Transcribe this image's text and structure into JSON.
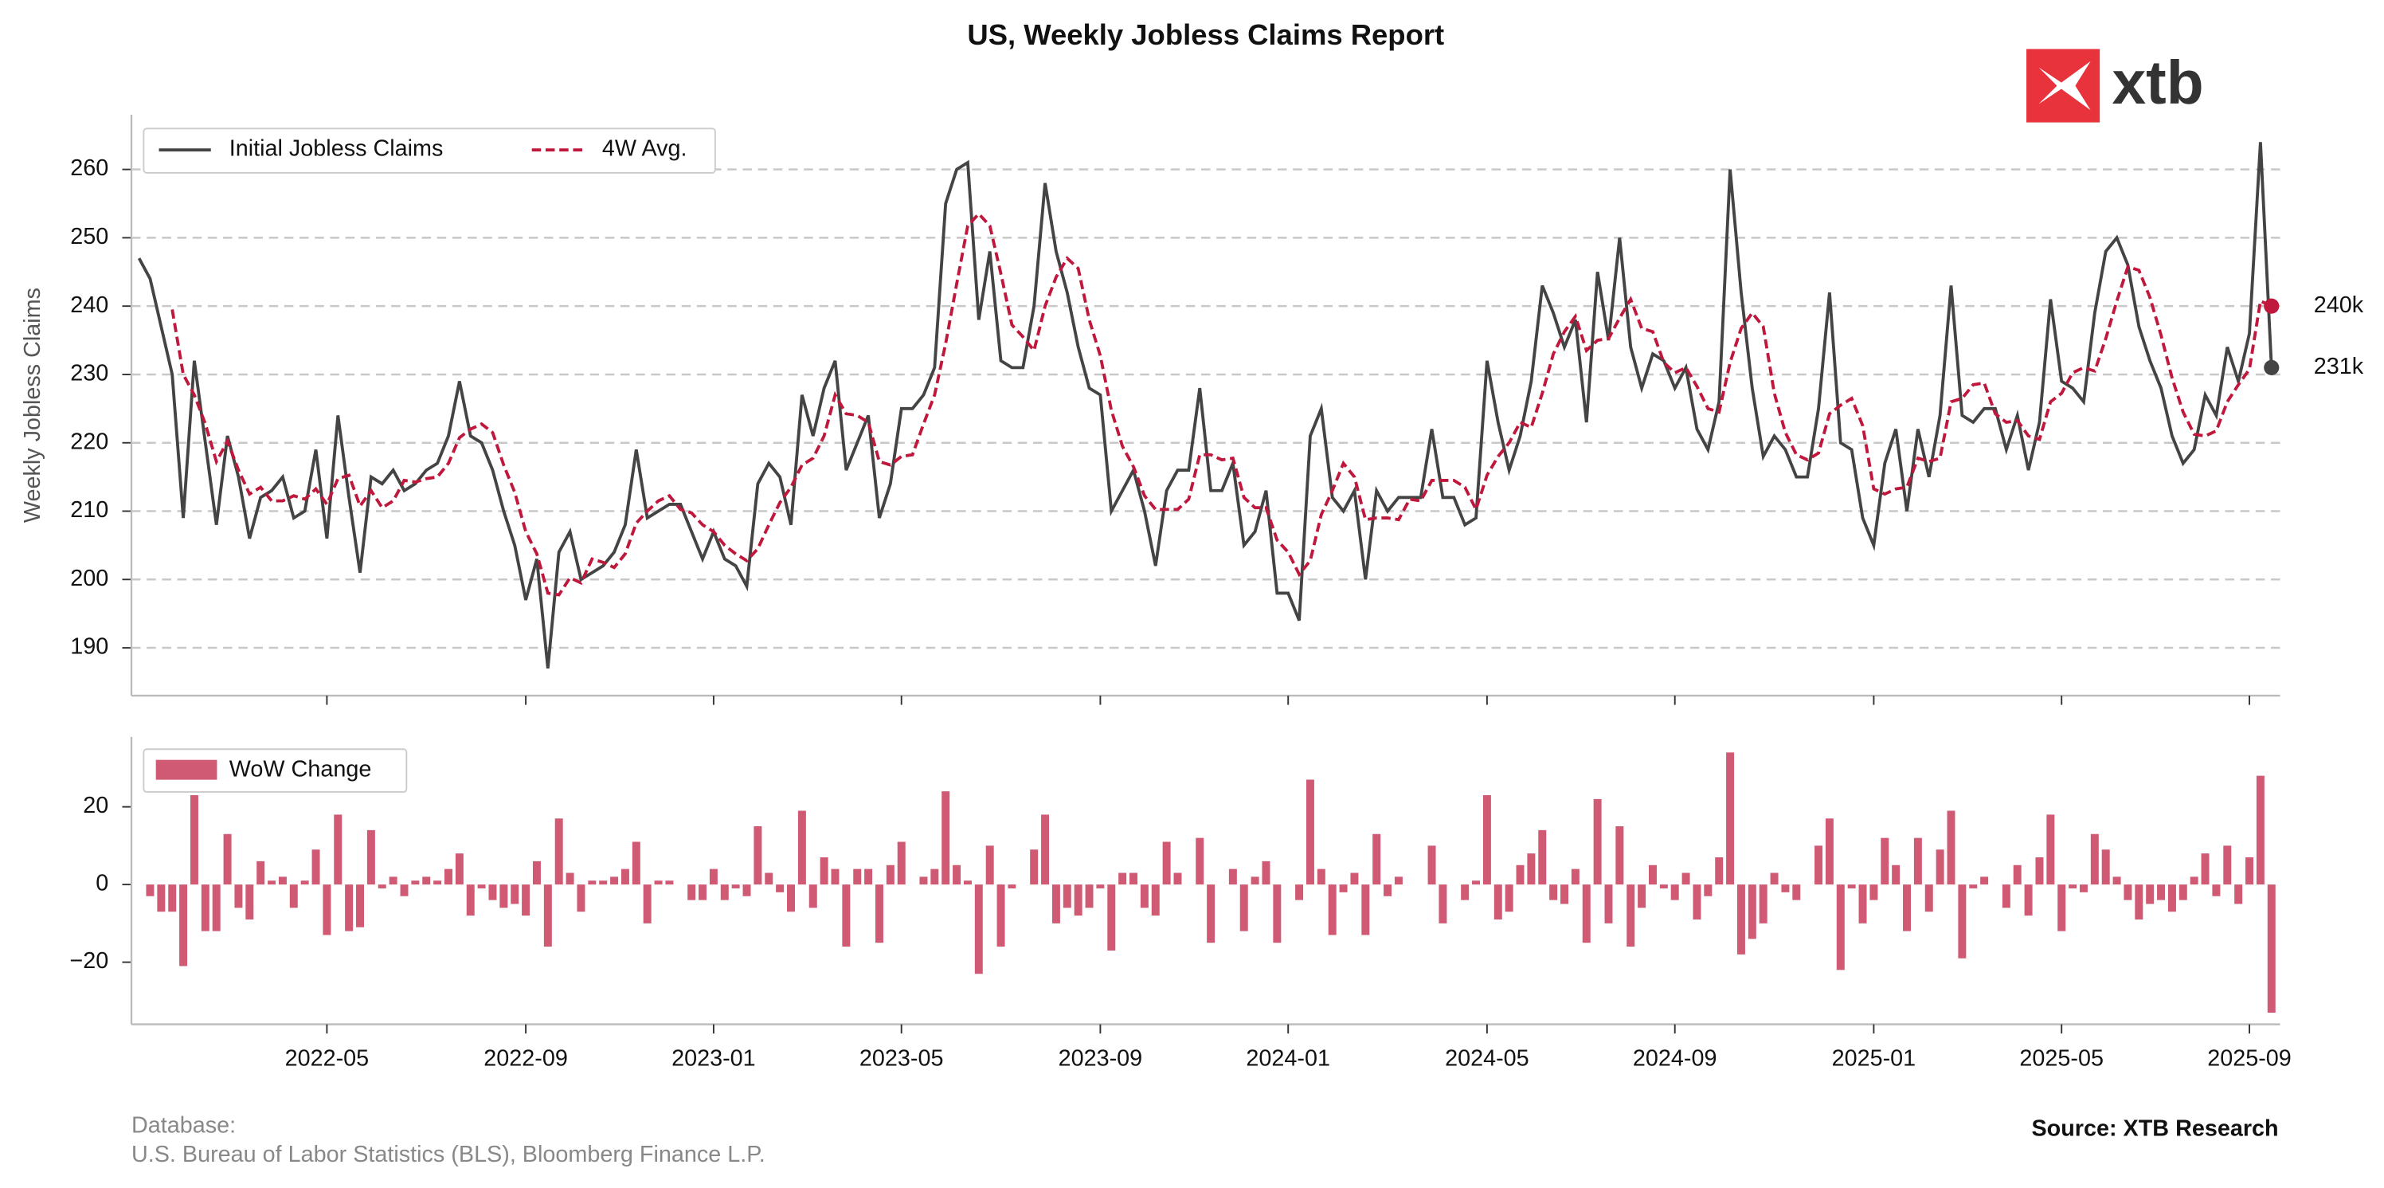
{
  "chart_data": [
    {
      "type": "line",
      "title": "US, Weekly Jobless Claims Report",
      "y_label": "Weekly Jobless Claims",
      "ylim": [
        183,
        268
      ],
      "yticks": [
        190,
        200,
        210,
        220,
        230,
        240,
        250,
        260
      ],
      "grid": true,
      "legend": "upper left",
      "series": [
        {
          "name": "Initial Jobless Claims",
          "color": "#444444",
          "dashed": false,
          "last_label": "231k",
          "values": [
            247,
            244,
            237,
            230,
            209,
            232,
            220,
            208,
            221,
            215,
            206,
            212,
            213,
            215,
            209,
            210,
            219,
            206,
            224,
            212,
            201,
            215,
            214,
            216,
            213,
            214,
            216,
            217,
            221,
            229,
            221,
            220,
            216,
            210,
            205,
            197,
            203,
            187,
            204,
            207,
            200,
            201,
            202,
            204,
            208,
            219,
            209,
            210,
            211,
            211,
            207,
            203,
            207,
            203,
            202,
            199,
            214,
            217,
            215,
            208,
            227,
            221,
            228,
            232,
            216,
            220,
            224,
            209,
            214,
            225,
            225,
            227,
            231,
            255,
            260,
            261,
            238,
            248,
            232,
            231,
            231,
            240,
            258,
            248,
            242,
            234,
            228,
            227,
            210,
            213,
            216,
            210,
            202,
            213,
            216,
            216,
            228,
            213,
            213,
            217,
            205,
            207,
            213,
            198,
            198,
            194,
            221,
            225,
            212,
            210,
            213,
            200,
            213,
            210,
            212,
            212,
            212,
            222,
            212,
            212,
            208,
            209,
            232,
            223,
            216,
            221,
            229,
            243,
            239,
            234,
            238,
            223,
            245,
            235,
            250,
            234,
            228,
            233,
            232,
            228,
            231,
            222,
            219,
            226,
            260,
            242,
            228,
            218,
            221,
            219,
            215,
            215,
            225,
            242,
            220,
            219,
            209,
            205,
            217,
            222,
            210,
            222,
            215,
            224,
            243,
            224,
            223,
            225,
            225,
            219,
            224,
            216,
            223,
            241,
            229,
            228,
            226,
            239,
            248,
            250,
            246,
            237,
            232,
            228,
            221,
            217,
            219,
            227,
            224,
            234,
            229,
            236,
            264,
            231
          ]
        },
        {
          "name": "4W Avg.",
          "color": "#c0183c",
          "dashed": true,
          "last_label": "240k",
          "values": [
            null,
            null,
            null,
            239.5,
            230,
            227,
            222.75,
            217.25,
            220.25,
            216,
            212.5,
            213.5,
            211.5,
            211.5,
            212.25,
            211.75,
            213.25,
            211,
            214.75,
            215.25,
            210.75,
            213,
            210.5,
            211.5,
            214.5,
            214.25,
            214.75,
            215,
            217,
            220.75,
            222,
            222.75,
            221.5,
            216.75,
            212.75,
            207,
            203.75,
            198,
            197.75,
            200.25,
            199.5,
            203,
            202.5,
            201.75,
            203.75,
            208.25,
            210,
            211.5,
            212.25,
            210.25,
            209.75,
            208,
            207,
            205,
            203.75,
            202.75,
            204.5,
            208,
            211.25,
            213.5,
            216.75,
            217.75,
            221,
            227,
            224.25,
            224,
            223,
            217.25,
            216.75,
            218,
            218.25,
            222.75,
            227,
            234.5,
            243.25,
            251.75,
            253.5,
            251.75,
            244.75,
            237.25,
            235.5,
            233.5,
            240,
            244.25,
            247,
            245.5,
            238,
            232.75,
            224.75,
            219.5,
            216.5,
            212.25,
            210.25,
            210.25,
            210.25,
            211.75,
            218.25,
            218.25,
            217.5,
            217.75,
            212,
            210.5,
            210.5,
            205.75,
            204,
            200.75,
            202.75,
            209.5,
            213,
            217,
            215,
            208.75,
            209,
            209,
            208.75,
            211.75,
            211.5,
            214.5,
            214.5,
            214.5,
            213.5,
            210.25,
            215.25,
            218,
            220,
            223,
            222.25,
            227.25,
            233,
            236.25,
            238.5,
            233.5,
            235,
            235.25,
            238.25,
            241,
            236.75,
            236.25,
            231.75,
            230.25,
            231,
            228.25,
            225,
            224.5,
            231.75,
            236.75,
            239,
            237,
            227.25,
            221.5,
            218.25,
            217.5,
            218.5,
            224.25,
            225.5,
            226.5,
            222.5,
            213.25,
            212.5,
            213.25,
            213.5,
            217.75,
            217.25,
            217.75,
            226,
            226.5,
            228.5,
            228.75,
            224.25,
            223,
            223.25,
            221,
            220.5,
            226,
            227.25,
            230.25,
            231,
            230.5,
            235.25,
            240.75,
            245.75,
            245.25,
            241.25,
            235.75,
            229.5,
            224.5,
            221.25,
            221,
            221.75,
            226,
            228.5,
            230.75,
            240.75,
            240
          ]
        }
      ]
    },
    {
      "type": "bar",
      "ylim": [
        -36,
        38
      ],
      "yticks": [
        {
          "value": -20,
          "label": "−20"
        },
        0,
        20
      ],
      "grid": false,
      "legend": "upper left",
      "categories": [
        null,
        null,
        null,
        null,
        null,
        null,
        null,
        null,
        null,
        null,
        null,
        null,
        null,
        null,
        null,
        null,
        null,
        "2022-05",
        null,
        null,
        null,
        null,
        null,
        null,
        null,
        null,
        null,
        null,
        null,
        null,
        null,
        null,
        null,
        null,
        null,
        "2022-09",
        null,
        null,
        null,
        null,
        null,
        null,
        null,
        null,
        null,
        null,
        null,
        null,
        null,
        null,
        null,
        null,
        "2023-01",
        null,
        null,
        null,
        null,
        null,
        null,
        null,
        null,
        null,
        null,
        null,
        null,
        null,
        null,
        null,
        null,
        "2023-05",
        null,
        null,
        null,
        null,
        null,
        null,
        null,
        null,
        null,
        null,
        null,
        null,
        null,
        null,
        null,
        null,
        null,
        "2023-09",
        null,
        null,
        null,
        null,
        null,
        null,
        null,
        null,
        null,
        null,
        null,
        null,
        null,
        null,
        null,
        null,
        "2024-01",
        null,
        null,
        null,
        null,
        null,
        null,
        null,
        null,
        null,
        null,
        null,
        null,
        null,
        null,
        null,
        null,
        null,
        "2024-05",
        null,
        null,
        null,
        null,
        null,
        null,
        null,
        null,
        null,
        null,
        null,
        null,
        null,
        null,
        null,
        null,
        "2024-09",
        null,
        null,
        null,
        null,
        null,
        null,
        null,
        null,
        null,
        null,
        null,
        null,
        null,
        null,
        null,
        null,
        null,
        "2025-01",
        null,
        null,
        null,
        null,
        null,
        null,
        null,
        null,
        null,
        null,
        null,
        null,
        null,
        null,
        null,
        null,
        "2025-05",
        null,
        null,
        null,
        null,
        null,
        null,
        null,
        null,
        null,
        null,
        null,
        null,
        null,
        null,
        null,
        null,
        "2025-09",
        null,
        null
      ],
      "series": [
        {
          "name": "WoW Change",
          "color": "#d05a74",
          "values": [
            null,
            -3,
            -7,
            -7,
            -21,
            23,
            -12,
            -12,
            13,
            -6,
            -9,
            6,
            1,
            2,
            -6,
            1,
            9,
            -13,
            18,
            -12,
            -11,
            14,
            -1,
            2,
            -3,
            1,
            2,
            1,
            4,
            8,
            -8,
            -1,
            -4,
            -6,
            -5,
            -8,
            6,
            -16,
            17,
            3,
            -7,
            1,
            1,
            2,
            4,
            11,
            -10,
            1,
            1,
            0,
            -4,
            -4,
            4,
            -4,
            -1,
            -3,
            15,
            3,
            -2,
            -7,
            19,
            -6,
            7,
            4,
            -16,
            4,
            4,
            -15,
            5,
            11,
            0,
            2,
            4,
            24,
            5,
            1,
            -23,
            10,
            -16,
            -1,
            0,
            9,
            18,
            -10,
            -6,
            -8,
            -6,
            -1,
            -17,
            3,
            3,
            -6,
            -8,
            11,
            3,
            0,
            12,
            -15,
            0,
            4,
            -12,
            2,
            6,
            -15,
            0,
            -4,
            27,
            4,
            -13,
            -2,
            3,
            -13,
            13,
            -3,
            2,
            0,
            0,
            10,
            -10,
            0,
            -4,
            1,
            23,
            -9,
            -7,
            5,
            8,
            14,
            -4,
            -5,
            4,
            -15,
            22,
            -10,
            15,
            -16,
            -6,
            5,
            -1,
            -4,
            3,
            -9,
            -3,
            7,
            34,
            -18,
            -14,
            -10,
            3,
            -2,
            -4,
            0,
            10,
            17,
            -22,
            -1,
            -10,
            -4,
            12,
            5,
            -12,
            12,
            -7,
            9,
            19,
            -19,
            -1,
            2,
            0,
            -6,
            5,
            -8,
            7,
            18,
            -12,
            -1,
            -2,
            13,
            9,
            2,
            -4,
            -9,
            -5,
            -4,
            -7,
            -4,
            2,
            8,
            -3,
            10,
            -5,
            7,
            28,
            -33
          ]
        }
      ]
    }
  ],
  "logo": "xtb",
  "footer": {
    "database_label": "Database:",
    "sources": "U.S. Bureau of Labor Statistics (BLS), Bloomberg Finance L.P.",
    "source_note": "Source: XTB Research"
  }
}
